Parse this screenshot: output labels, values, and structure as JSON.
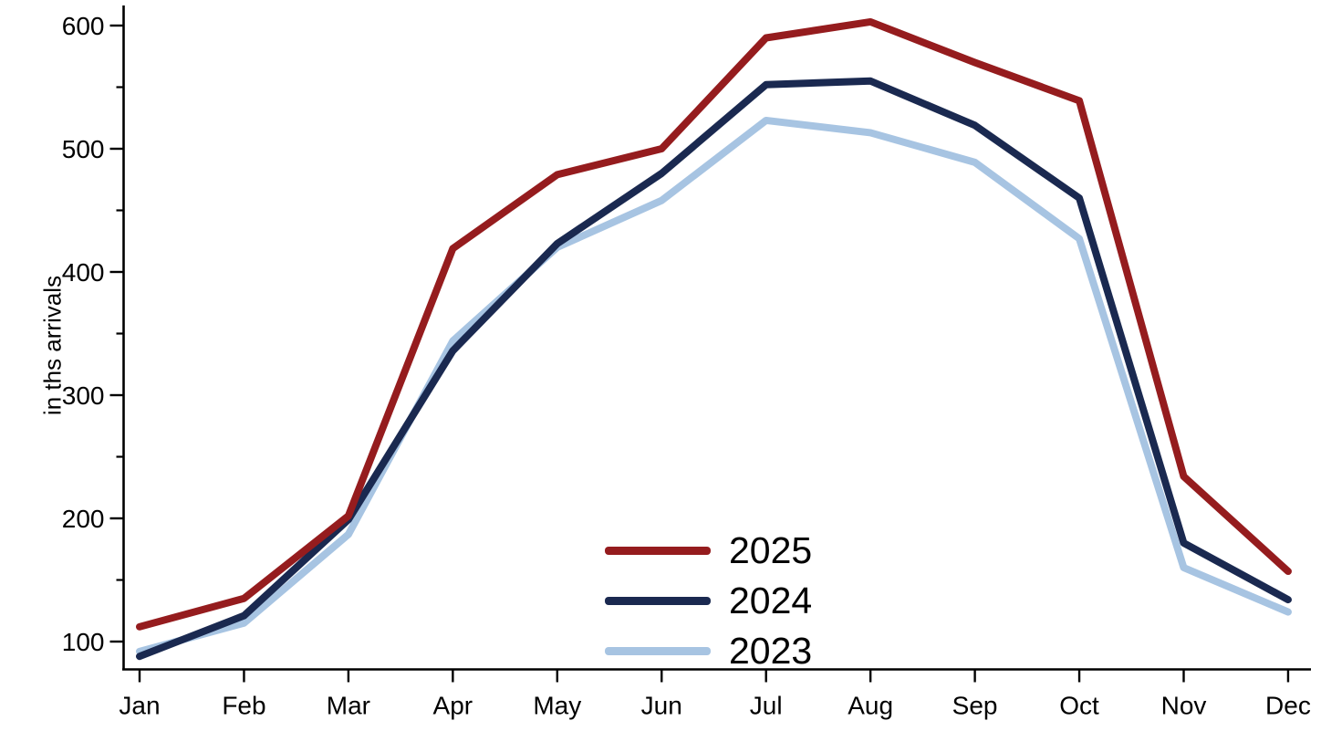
{
  "chart_data": {
    "type": "line",
    "title": "",
    "xlabel": "",
    "ylabel": "in ths arrivals",
    "unit": "thousands of arrivals",
    "categories": [
      "Jan",
      "Feb",
      "Mar",
      "Apr",
      "May",
      "Jun",
      "Jul",
      "Aug",
      "Sep",
      "Oct",
      "Nov",
      "Dec"
    ],
    "series": [
      {
        "name": "2025",
        "color": "#951c1e",
        "values": [
          112,
          135,
          202,
          419,
          479,
          500,
          590,
          603,
          570,
          539,
          234,
          157
        ]
      },
      {
        "name": "2024",
        "color": "#1a2950",
        "values": [
          88,
          121,
          199,
          336,
          423,
          480,
          552,
          555,
          519,
          460,
          180,
          134
        ]
      },
      {
        "name": "2023",
        "color": "#a7c4e2",
        "values": [
          92,
          115,
          187,
          344,
          420,
          458,
          523,
          513,
          489,
          427,
          160,
          124
        ]
      }
    ],
    "y_ticks": [
      100,
      200,
      300,
      400,
      500,
      600
    ],
    "y_minor_ticks": [
      150,
      250,
      350,
      450,
      550
    ],
    "ylim": [
      78,
      621
    ],
    "grid": false,
    "legend_position": "lower-center",
    "axis_color": "#000000"
  }
}
